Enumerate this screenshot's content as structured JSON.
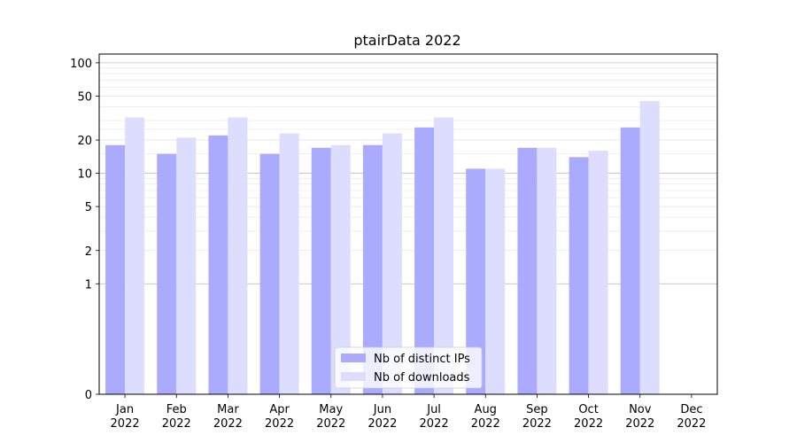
{
  "chart_data": {
    "type": "bar",
    "title": "ptairData 2022",
    "xlabel": "",
    "ylabel": "",
    "yscale": "symlog",
    "yticks": [
      0,
      1,
      2,
      5,
      10,
      20,
      50,
      100
    ],
    "ylim": [
      0,
      120
    ],
    "grid": "horizontal",
    "legend_position": "bottom-center",
    "categories": [
      "Jan\n2022",
      "Feb\n2022",
      "Mar\n2022",
      "Apr\n2022",
      "May\n2022",
      "Jun\n2022",
      "Jul\n2022",
      "Aug\n2022",
      "Sep\n2022",
      "Oct\n2022",
      "Nov\n2022",
      "Dec\n2022"
    ],
    "series": [
      {
        "name": "Nb of distinct IPs",
        "color": "#aaaaff",
        "values": [
          18,
          15,
          22,
          15,
          17,
          18,
          26,
          11,
          17,
          14,
          26,
          0
        ]
      },
      {
        "name": "Nb of downloads",
        "color": "#ddddff",
        "values": [
          32,
          21,
          32,
          23,
          18,
          23,
          32,
          11,
          17,
          16,
          45,
          0
        ]
      }
    ]
  }
}
